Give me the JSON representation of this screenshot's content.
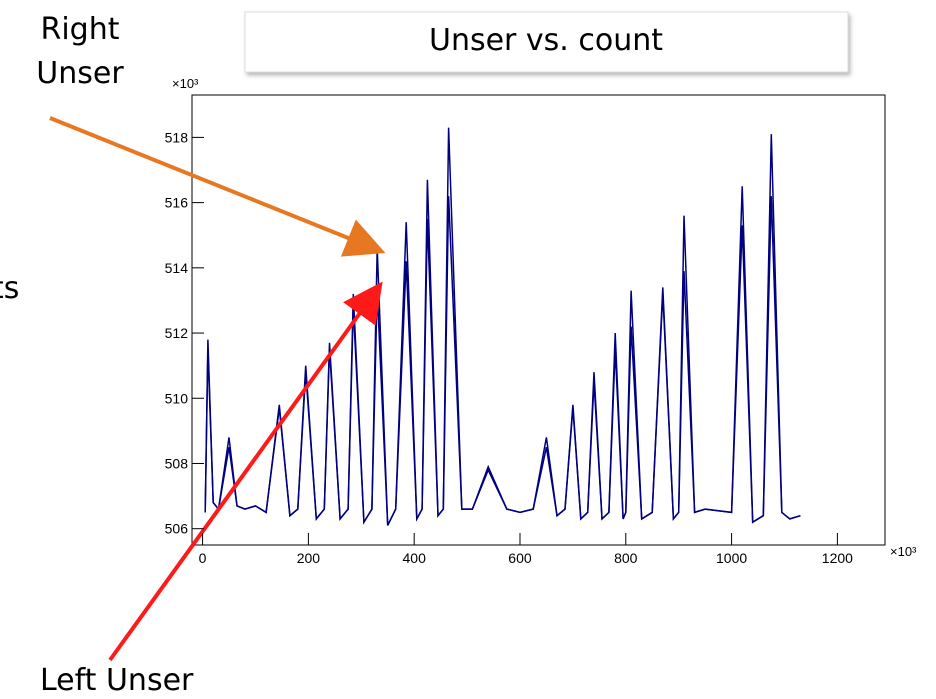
{
  "chart_data": {
    "type": "line",
    "title": "Unser vs. count",
    "side_text": "ts",
    "x_multiplier": "×10³",
    "y_multiplier": "×10³",
    "x": [
      5,
      10,
      20,
      30,
      50,
      65,
      80,
      100,
      120,
      145,
      165,
      180,
      195,
      215,
      230,
      240,
      260,
      275,
      285,
      305,
      320,
      330,
      350,
      365,
      385,
      405,
      415,
      425,
      445,
      455,
      465,
      490,
      510,
      540,
      575,
      600,
      625,
      650,
      670,
      685,
      700,
      715,
      728,
      740,
      755,
      768,
      780,
      795,
      800,
      810,
      830,
      850,
      870,
      890,
      900,
      910,
      930,
      950,
      1000,
      1020,
      1040,
      1060,
      1075,
      1095,
      1110,
      1130
    ],
    "series": [
      {
        "name": "Left Unser",
        "color": "#ff1a1a",
        "line_color": "#000080",
        "values": [
          506.5,
          511.5,
          506.8,
          506.6,
          508.5,
          506.7,
          506.6,
          506.7,
          506.5,
          509.7,
          506.4,
          506.6,
          510.8,
          506.3,
          506.6,
          511.5,
          506.3,
          506.6,
          512.8,
          506.2,
          506.6,
          513.3,
          506.1,
          506.6,
          514.2,
          506.3,
          506.6,
          515.5,
          506.4,
          506.6,
          516.2,
          506.6,
          506.6,
          507.8,
          506.6,
          506.5,
          506.6,
          508.5,
          506.4,
          506.6,
          509.7,
          506.3,
          506.5,
          510.5,
          506.3,
          506.5,
          511.5,
          506.3,
          506.5,
          512.2,
          506.3,
          506.5,
          513.2,
          506.3,
          506.5,
          513.9,
          506.5,
          506.6,
          506.5,
          515.3,
          506.2,
          506.4,
          516.2,
          506.5,
          506.3,
          506.4
        ]
      },
      {
        "name": "Right Unser",
        "color": "#e87722",
        "line_color": "#000080",
        "values": [
          506.5,
          511.8,
          506.8,
          506.6,
          508.8,
          506.7,
          506.6,
          506.7,
          506.5,
          509.8,
          506.4,
          506.6,
          511.0,
          506.3,
          506.6,
          511.7,
          506.3,
          506.6,
          513.2,
          506.2,
          506.6,
          514.6,
          506.1,
          506.6,
          515.4,
          506.3,
          506.6,
          516.7,
          506.4,
          506.6,
          518.3,
          506.6,
          506.6,
          507.9,
          506.6,
          506.5,
          506.6,
          508.8,
          506.4,
          506.6,
          509.8,
          506.3,
          506.5,
          510.8,
          506.3,
          506.5,
          512.0,
          506.3,
          506.5,
          513.3,
          506.3,
          506.5,
          513.4,
          506.3,
          506.5,
          515.6,
          506.5,
          506.6,
          506.5,
          516.5,
          506.2,
          506.4,
          518.1,
          506.5,
          506.3,
          506.4
        ]
      }
    ],
    "xlim": [
      -20,
      1290
    ],
    "ylim": [
      505.5,
      519.3
    ],
    "xticks": [
      0,
      200,
      400,
      600,
      800,
      1000,
      1200
    ],
    "yticks": [
      506,
      508,
      510,
      512,
      514,
      516,
      518
    ]
  }
}
